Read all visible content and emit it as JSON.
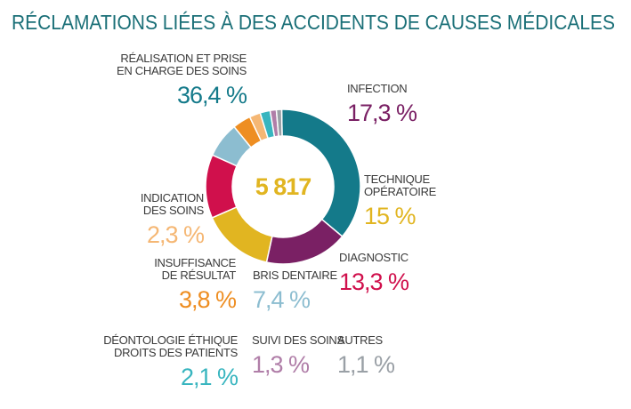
{
  "chart_data": {
    "type": "pie",
    "title": "RÉCLAMATIONS LIÉES À DES ACCIDENTS DE CAUSES MÉDICALES",
    "total": "5 817",
    "colors": {
      "title": "#1a6f77",
      "total": "#e1b521"
    },
    "slices": [
      {
        "label_lines": [
          "RÉALISATION ET PRISE",
          "EN CHARGE DES SOINS"
        ],
        "value": 36.4,
        "display": "36,4 %",
        "color": "#147a8a"
      },
      {
        "label_lines": [
          "INFECTION"
        ],
        "value": 17.3,
        "display": "17,3 %",
        "color": "#7a2064"
      },
      {
        "label_lines": [
          "TECHNIQUE",
          "OPÉRATOIRE"
        ],
        "value": 15.0,
        "display": "15 %",
        "color": "#e1b521"
      },
      {
        "label_lines": [
          "DIAGNOSTIC"
        ],
        "value": 13.3,
        "display": "13,3 %",
        "color": "#d0104c"
      },
      {
        "label_lines": [
          "BRIS DENTAIRE"
        ],
        "value": 7.4,
        "display": "7,4 %",
        "color": "#8cbdd0"
      },
      {
        "label_lines": [
          "INSUFFISANCE",
          "DE RÉSULTAT"
        ],
        "value": 3.8,
        "display": "3,8 %",
        "color": "#ee8e22"
      },
      {
        "label_lines": [
          "INDICATION",
          "DES SOINS"
        ],
        "value": 2.3,
        "display": "2,3 %",
        "color": "#f5b774"
      },
      {
        "label_lines": [
          "DÉONTOLOGIE ÉTHIQUE",
          "DROITS DES PATIENTS"
        ],
        "value": 2.1,
        "display": "2,1 %",
        "color": "#38b5bf"
      },
      {
        "label_lines": [
          "SUIVI DES SOINS"
        ],
        "value": 1.3,
        "display": "1,3 %",
        "color": "#b07ea8"
      },
      {
        "label_lines": [
          "AUTRES"
        ],
        "value": 1.1,
        "display": "1,1 %",
        "color": "#9aa0a6"
      }
    ]
  }
}
